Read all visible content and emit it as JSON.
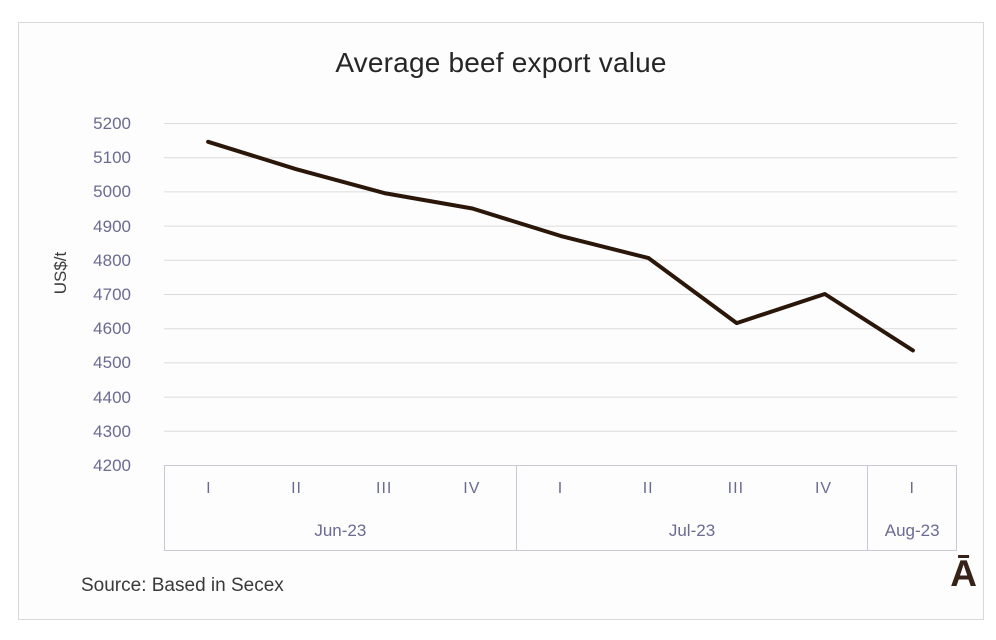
{
  "title": "Average beef export value",
  "source": "Source: Based in Secex",
  "watermark": "Ā",
  "colors": {
    "line": "#2a1709",
    "grid": "#dcdcdc",
    "axis_border": "#c9c8d6",
    "tick": "#6a6b92",
    "title": "#262626",
    "card_border": "#d9d9d9"
  },
  "chart_data": {
    "type": "line",
    "title": "Average beef export value",
    "xlabel": "",
    "ylabel": "US$/t",
    "categories": [
      "I",
      "II",
      "III",
      "IV",
      "I",
      "II",
      "III",
      "IV",
      "I"
    ],
    "groups": [
      {
        "label": "Jun-23",
        "span": 4
      },
      {
        "label": "Jul-23",
        "span": 4
      },
      {
        "label": "Aug-23",
        "span": 1
      }
    ],
    "series": [
      {
        "name": "Average beef export value",
        "values": [
          5145,
          5065,
          4995,
          4950,
          4870,
          4805,
          4615,
          4700,
          4535
        ]
      }
    ],
    "ylim": [
      4200,
      5200
    ],
    "y_tick_step": 100,
    "grid": true,
    "legend": false,
    "annotation": "Source: Based in Secex"
  }
}
